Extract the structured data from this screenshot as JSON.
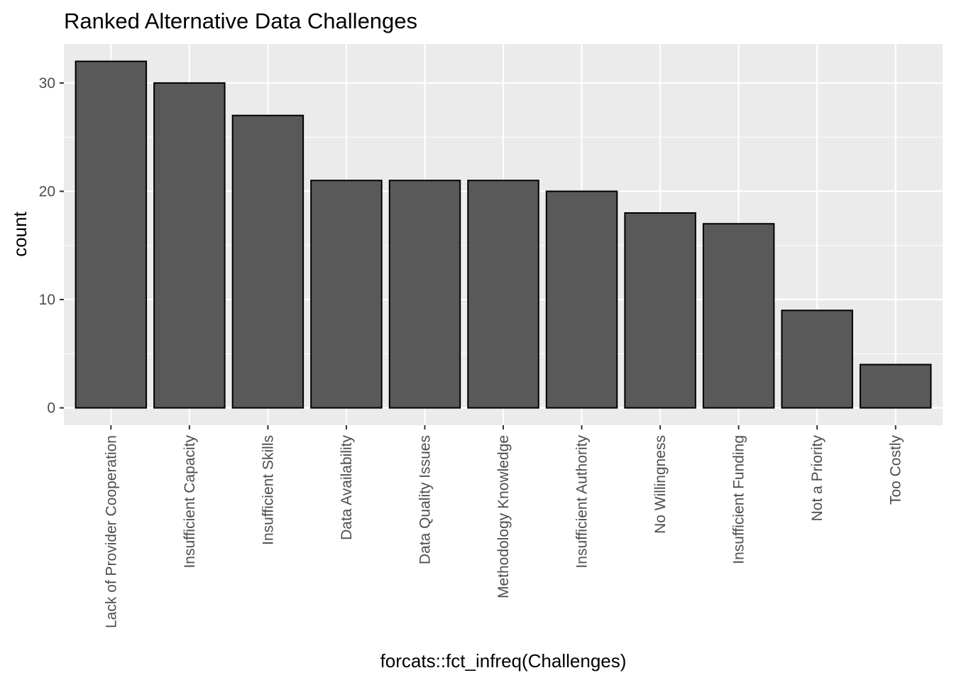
{
  "chart_data": {
    "type": "bar",
    "title": "Ranked Alternative Data Challenges",
    "xlabel": "forcats::fct_infreq(Challenges)",
    "ylabel": "count",
    "categories": [
      "Lack of Provider Cooperation",
      "Insufficient Capacity",
      "Insufficient Skills",
      "Data Availability",
      "Data Quality Issues",
      "Methodology Knowledge",
      "Insufficient Authority",
      "No Willingness",
      "Insufficient Funding",
      "Not a Priority",
      "Too Costly"
    ],
    "values": [
      32,
      30,
      27,
      21,
      21,
      21,
      20,
      18,
      17,
      9,
      4
    ],
    "ylim": [
      -1.6,
      33.6
    ],
    "yticks": [
      0,
      10,
      20,
      30
    ],
    "yticks_minor": [
      5,
      15,
      25
    ],
    "grid": true,
    "legend": "none",
    "colors": {
      "panel": "#ebebeb",
      "grid": "#ffffff",
      "bar_fill": "#595959",
      "bar_outline": "#000000",
      "tick_text": "#4d4d4d",
      "tick_mark": "#333333"
    }
  }
}
